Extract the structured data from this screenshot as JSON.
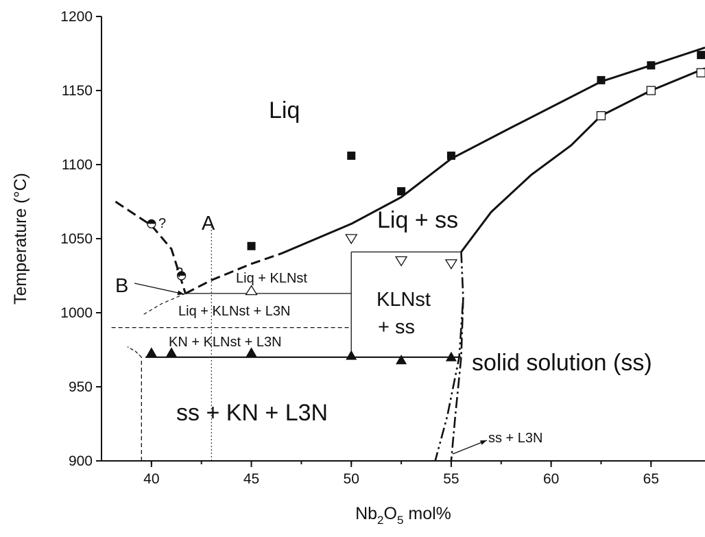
{
  "chart_data": {
    "type": "scatter",
    "title": "",
    "xlabel": {
      "main": "Nb",
      "sub1": "2",
      "mid": "O",
      "sub2": "5",
      "tail": " mol%"
    },
    "ylabel": "Temperature (°C)",
    "xlim": [
      37.5,
      67.7
    ],
    "ylim": [
      900,
      1200
    ],
    "xticks": [
      40,
      45,
      50,
      55,
      60,
      65
    ],
    "yticks": [
      900,
      950,
      1000,
      1050,
      1100,
      1150,
      1200
    ],
    "grid": false,
    "series": [
      {
        "marker": "filled-square",
        "points": [
          [
            45,
            1045
          ],
          [
            50,
            1106
          ],
          [
            52.5,
            1082
          ],
          [
            55,
            1106
          ],
          [
            62.5,
            1157
          ],
          [
            65,
            1167
          ],
          [
            67.5,
            1174
          ]
        ]
      },
      {
        "marker": "open-square",
        "points": [
          [
            62.5,
            1133
          ],
          [
            65,
            1150
          ],
          [
            67.5,
            1162
          ]
        ]
      },
      {
        "marker": "open-triangle-down",
        "points": [
          [
            50,
            1050
          ],
          [
            52.5,
            1035
          ],
          [
            55,
            1033
          ]
        ]
      },
      {
        "marker": "open-triangle-up",
        "points": [
          [
            45,
            1015
          ]
        ]
      },
      {
        "marker": "filled-triangle-up",
        "points": [
          [
            40,
            973
          ],
          [
            41,
            973
          ],
          [
            45,
            973
          ],
          [
            50,
            971
          ],
          [
            52.5,
            968
          ],
          [
            55,
            970
          ]
        ]
      },
      {
        "marker": "half-filled-circle",
        "points": [
          [
            40,
            1060
          ],
          [
            41.5,
            1025
          ]
        ]
      }
    ],
    "boundaries": {
      "liquidus_solid": [
        [
          46.5,
          1040
        ],
        [
          50,
          1060
        ],
        [
          52.5,
          1078
        ],
        [
          55,
          1104
        ],
        [
          58,
          1125
        ],
        [
          62.5,
          1156
        ],
        [
          65,
          1167
        ],
        [
          67.7,
          1179
        ]
      ],
      "liquidus_dashed": [
        [
          41.7,
          1013
        ],
        [
          43,
          1022
        ],
        [
          45,
          1033
        ],
        [
          46.5,
          1040
        ]
      ],
      "solidus_solid": [
        [
          55.5,
          1041
        ],
        [
          57,
          1068
        ],
        [
          59,
          1093
        ],
        [
          61,
          1113
        ],
        [
          62.5,
          1133
        ],
        [
          65,
          1150
        ],
        [
          67.7,
          1165
        ]
      ],
      "b_branch_dashed": [
        [
          38.2,
          1075
        ],
        [
          39.2,
          1066
        ],
        [
          40,
          1059
        ],
        [
          41,
          1043
        ],
        [
          41.7,
          1013
        ]
      ],
      "b_thin_dashed": [
        [
          41.7,
          1013
        ],
        [
          40.5,
          1006
        ],
        [
          39.5,
          998
        ]
      ],
      "solvus_1": [
        [
          55.5,
          1041
        ],
        [
          55.6,
          1010
        ],
        [
          55.4,
          970
        ],
        [
          54.8,
          930
        ],
        [
          54.2,
          900
        ]
      ],
      "solvus_2": [
        [
          55.6,
          1010
        ],
        [
          55.5,
          970
        ],
        [
          55.2,
          930
        ],
        [
          55,
          900
        ]
      ],
      "eutectic_line": [
        [
          39.7,
          970
        ],
        [
          55.5,
          970
        ]
      ],
      "peritectic_line": [
        [
          50,
          1041
        ],
        [
          55.5,
          1041
        ]
      ],
      "kln_upper_line": [
        [
          41.7,
          1013
        ],
        [
          50,
          1013
        ]
      ],
      "kln_vertical": [
        [
          50,
          970
        ],
        [
          50,
          1041
        ]
      ],
      "dashed_990": [
        [
          38,
          990
        ],
        [
          50,
          990
        ]
      ],
      "line_a": [
        [
          43,
          900
        ],
        [
          43,
          1060
        ]
      ],
      "left_dashed_vertical": [
        [
          39.5,
          900
        ],
        [
          39.5,
          970
        ]
      ],
      "left_dashed_hook": [
        [
          39.5,
          970
        ],
        [
          39.2,
          974
        ],
        [
          38.8,
          977
        ]
      ]
    },
    "annotations": {
      "liq": "Liq",
      "liq_ss": "Liq + ss",
      "kln_ss_1": "KLNst",
      "kln_ss_2": "+ ss",
      "liq_klnst": "Liq + KLNst",
      "liq_klnst_l3n": "Liq + KLNst + L3N",
      "kn_klnst_l3n": "KN + KLNst + L3N",
      "solid_solution": "solid solution (ss)",
      "ss_kn_l3n": "ss + KN + L3N",
      "ss_l3n": "ss + L3N",
      "label_a": "A",
      "label_b": "B",
      "question": "?"
    }
  }
}
